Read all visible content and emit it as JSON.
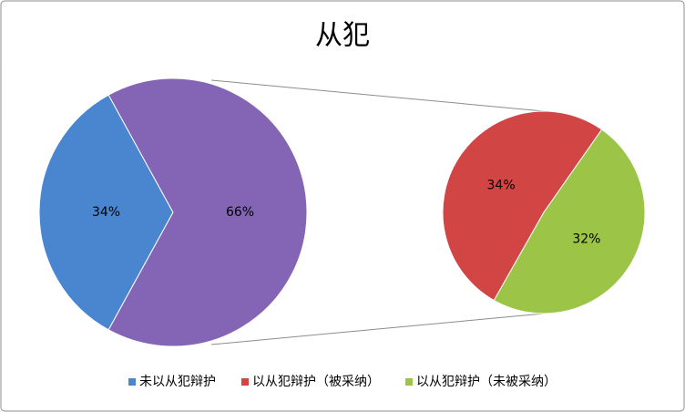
{
  "chart_data": {
    "type": "pie-of-pie",
    "title": "从犯",
    "main": {
      "categories": [
        "未以从犯辩护",
        null
      ],
      "values": [
        34,
        66
      ],
      "value_labels": [
        "34%",
        "66%"
      ],
      "colors": [
        "#4a86d0",
        "#8464b4"
      ]
    },
    "secondary": {
      "categories": [
        "以从犯辩护（被采纳）",
        "以从犯辩护（未被采纳）"
      ],
      "values": [
        34,
        32
      ],
      "value_labels": [
        "34%",
        "32%"
      ],
      "colors": [
        "#d24545",
        "#9cc447"
      ]
    },
    "legend": "bottom"
  }
}
